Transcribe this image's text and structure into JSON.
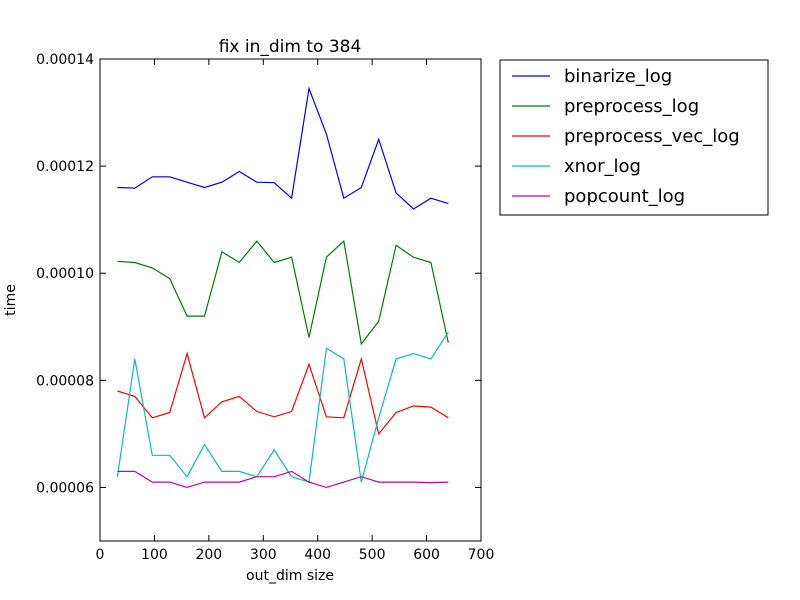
{
  "chart_data": {
    "type": "line",
    "title": "fix in_dim to 384",
    "xlabel": "out_dim size",
    "ylabel": "time",
    "xlim": [
      0,
      700
    ],
    "ylim": [
      5e-05,
      0.00014
    ],
    "xticks": [
      0,
      100,
      200,
      300,
      400,
      500,
      600,
      700
    ],
    "xtick_labels": [
      "0",
      "100",
      "200",
      "300",
      "400",
      "500",
      "600",
      "700"
    ],
    "yticks": [
      6e-05,
      8e-05,
      0.0001,
      0.00012,
      0.00014
    ],
    "ytick_labels": [
      "0.00006",
      "0.00008",
      "0.00010",
      "0.00012",
      "0.00014"
    ],
    "grid": false,
    "legend_position": "outside-right-top",
    "x": [
      32,
      64,
      96,
      128,
      160,
      192,
      224,
      256,
      288,
      320,
      352,
      384,
      416,
      448,
      480,
      512,
      544,
      576,
      608,
      640
    ],
    "series": [
      {
        "name": "binarize_log",
        "color": "#0000ff",
        "values": [
          0.000116,
          0.0001159,
          0.000118,
          0.000118,
          0.000117,
          0.000116,
          0.000117,
          0.000119,
          0.000117,
          0.0001169,
          0.000114,
          0.0001345,
          0.000126,
          0.000114,
          0.000116,
          0.000125,
          0.000115,
          0.000112,
          0.000114,
          0.000113
        ]
      },
      {
        "name": "preprocess_log",
        "color": "#008000",
        "values": [
          0.0001022,
          0.000102,
          0.000101,
          9.9e-05,
          9.2e-05,
          9.2e-05,
          0.000104,
          0.000102,
          0.000106,
          0.000102,
          0.000103,
          8.8e-05,
          0.000103,
          0.000106,
          8.68e-05,
          9.1e-05,
          0.0001052,
          0.000103,
          0.000102,
          8.7e-05
        ]
      },
      {
        "name": "preprocess_vec_log",
        "color": "#ff0000",
        "values": [
          7.8e-05,
          7.7e-05,
          7.3e-05,
          7.4e-05,
          8.5e-05,
          7.3e-05,
          7.6e-05,
          7.7e-05,
          7.42e-05,
          7.32e-05,
          7.42e-05,
          8.3e-05,
          7.32e-05,
          7.3e-05,
          8.4e-05,
          7e-05,
          7.4e-05,
          7.52e-05,
          7.5e-05,
          7.3e-05
        ]
      },
      {
        "name": "xnor_log",
        "color": "#00bfbf",
        "values": [
          6.2e-05,
          8.4e-05,
          6.6e-05,
          6.6e-05,
          6.2e-05,
          6.8e-05,
          6.3e-05,
          6.3e-05,
          6.2e-05,
          6.7e-05,
          6.2e-05,
          6.1e-05,
          8.6e-05,
          8.4e-05,
          6.1e-05,
          7.3e-05,
          8.4e-05,
          8.5e-05,
          8.4e-05,
          8.9e-05
        ]
      },
      {
        "name": "popcount_log",
        "color": "#bf00bf",
        "values": [
          6.3e-05,
          6.3e-05,
          6.1e-05,
          6.1e-05,
          6e-05,
          6.1e-05,
          6.1e-05,
          6.1e-05,
          6.2e-05,
          6.2e-05,
          6.3e-05,
          6.1e-05,
          6e-05,
          6.1e-05,
          6.2e-05,
          6.1e-05,
          6.1e-05,
          6.1e-05,
          6.09e-05,
          6.1e-05
        ]
      }
    ]
  }
}
